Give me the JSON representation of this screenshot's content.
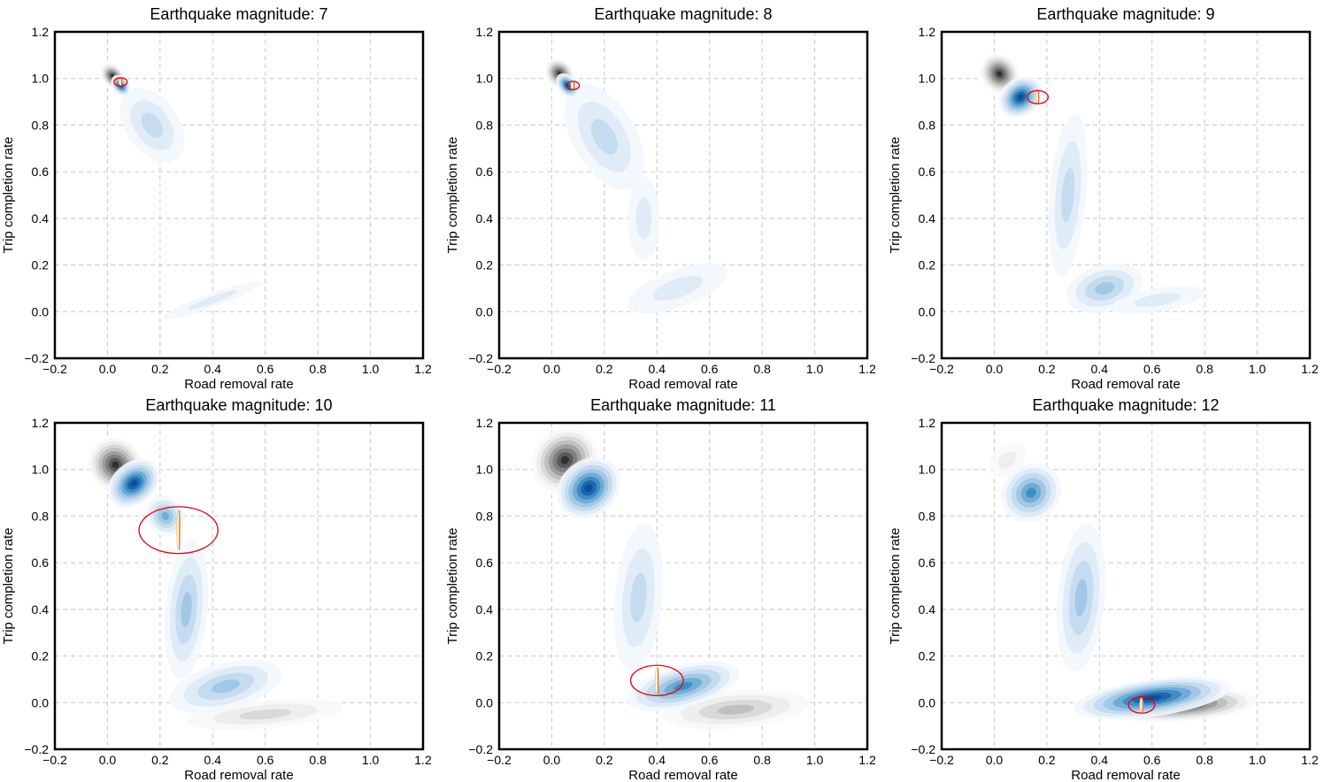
{
  "chart_data": [
    {
      "type": "contour",
      "title": "Earthquake magnitude: 7",
      "xlabel": "Road removal rate",
      "ylabel": "Trip completion rate",
      "xlim": [
        -0.2,
        1.2
      ],
      "ylim": [
        -0.2,
        1.2
      ],
      "xticks": [
        -0.2,
        0.0,
        0.2,
        0.4,
        0.6,
        0.8,
        1.0,
        1.2
      ],
      "xtick_labels": [
        "−0.2",
        "0.0",
        "0.2",
        "0.4",
        "0.6",
        "0.8",
        "1.0",
        "1.2"
      ],
      "yticks": [
        -0.2,
        0.0,
        0.2,
        0.4,
        0.6,
        0.8,
        1.0,
        1.2
      ],
      "ytick_labels": [
        "−0.2",
        "0.0",
        "0.2",
        "0.4",
        "0.6",
        "0.8",
        "1.0",
        "1.2"
      ],
      "grid": true,
      "density": {
        "gray": [
          [
            0.02,
            1.01,
            0.04,
            0.06,
            -40,
            1.0
          ]
        ],
        "blue": [
          [
            0.17,
            0.8,
            0.1,
            0.18,
            -35,
            0.35
          ],
          [
            0.05,
            0.97,
            0.03,
            0.05,
            -38,
            1.0
          ],
          [
            0.4,
            0.05,
            0.2,
            0.03,
            -20,
            0.15
          ]
        ]
      },
      "highlight": {
        "x": 0.05,
        "y": 0.985,
        "rx": 0.025,
        "ry": 0.018
      }
    },
    {
      "type": "contour",
      "title": "Earthquake magnitude: 8",
      "xlabel": "Road removal rate",
      "ylabel": "Trip completion rate",
      "xlim": [
        -0.2,
        1.2
      ],
      "ylim": [
        -0.2,
        1.2
      ],
      "xticks": [
        -0.2,
        0.0,
        0.2,
        0.4,
        0.6,
        0.8,
        1.0,
        1.2
      ],
      "xtick_labels": [
        "−0.2",
        "0.0",
        "0.2",
        "0.4",
        "0.6",
        "0.8",
        "1.0",
        "1.2"
      ],
      "yticks": [
        -0.2,
        0.0,
        0.2,
        0.4,
        0.6,
        0.8,
        1.0,
        1.2
      ],
      "ytick_labels": [
        "−0.2",
        "0.0",
        "0.2",
        "0.4",
        "0.6",
        "0.8",
        "1.0",
        "1.2"
      ],
      "grid": true,
      "density": {
        "gray": [
          [
            0.03,
            1.02,
            0.05,
            0.07,
            -40,
            1.0
          ]
        ],
        "blue": [
          [
            0.2,
            0.75,
            0.12,
            0.25,
            -30,
            0.35
          ],
          [
            0.06,
            0.97,
            0.035,
            0.06,
            -40,
            1.0
          ],
          [
            0.35,
            0.4,
            0.06,
            0.18,
            0,
            0.25
          ],
          [
            0.48,
            0.1,
            0.2,
            0.08,
            -20,
            0.25
          ]
        ]
      },
      "highlight": {
        "x": 0.08,
        "y": 0.97,
        "rx": 0.025,
        "ry": 0.018
      }
    },
    {
      "type": "contour",
      "title": "Earthquake magnitude: 9",
      "xlabel": "Road removal rate",
      "ylabel": "Trip completion rate",
      "xlim": [
        -0.2,
        1.2
      ],
      "ylim": [
        -0.2,
        1.2
      ],
      "xticks": [
        -0.2,
        0.0,
        0.2,
        0.4,
        0.6,
        0.8,
        1.0,
        1.2
      ],
      "xtick_labels": [
        "−0.2",
        "0.0",
        "0.2",
        "0.4",
        "0.6",
        "0.8",
        "1.0",
        "1.2"
      ],
      "yticks": [
        -0.2,
        0.0,
        0.2,
        0.4,
        0.6,
        0.8,
        1.0,
        1.2
      ],
      "ytick_labels": [
        "−0.2",
        "0.0",
        "0.2",
        "0.4",
        "0.6",
        "0.8",
        "1.0",
        "1.2"
      ],
      "grid": true,
      "density": {
        "gray": [
          [
            0.02,
            1.02,
            0.07,
            0.09,
            -40,
            1.0
          ]
        ],
        "blue": [
          [
            0.1,
            0.92,
            0.09,
            0.08,
            -40,
            1.0
          ],
          [
            0.28,
            0.5,
            0.07,
            0.35,
            5,
            0.4
          ],
          [
            0.42,
            0.1,
            0.15,
            0.1,
            -15,
            0.5
          ],
          [
            0.62,
            0.05,
            0.18,
            0.05,
            -10,
            0.3
          ]
        ]
      },
      "highlight": {
        "x": 0.165,
        "y": 0.92,
        "rx": 0.04,
        "ry": 0.028
      }
    },
    {
      "type": "contour",
      "title": "Earthquake magnitude: 10",
      "xlabel": "Road removal rate",
      "ylabel": "Trip completion rate",
      "xlim": [
        -0.2,
        1.2
      ],
      "ylim": [
        -0.2,
        1.2
      ],
      "xticks": [
        -0.2,
        0.0,
        0.2,
        0.4,
        0.6,
        0.8,
        1.0,
        1.2
      ],
      "xtick_labels": [
        "−0.2",
        "0.0",
        "0.2",
        "0.4",
        "0.6",
        "0.8",
        "1.0",
        "1.2"
      ],
      "yticks": [
        -0.2,
        0.0,
        0.2,
        0.4,
        0.6,
        0.8,
        1.0,
        1.2
      ],
      "ytick_labels": [
        "−0.2",
        "0.0",
        "0.2",
        "0.4",
        "0.6",
        "0.8",
        "1.0",
        "1.2"
      ],
      "grid": true,
      "density": {
        "gray": [
          [
            0.03,
            1.02,
            0.1,
            0.12,
            -40,
            1.0
          ],
          [
            0.6,
            -0.05,
            0.3,
            0.06,
            -5,
            0.4
          ]
        ],
        "blue": [
          [
            0.1,
            0.94,
            0.11,
            0.09,
            -40,
            1.0
          ],
          [
            0.22,
            0.8,
            0.07,
            0.09,
            -40,
            0.6
          ],
          [
            0.3,
            0.4,
            0.08,
            0.3,
            5,
            0.45
          ],
          [
            0.45,
            0.07,
            0.22,
            0.1,
            -15,
            0.55
          ]
        ]
      },
      "highlight": {
        "x": 0.27,
        "y": 0.74,
        "rx": 0.15,
        "ry": 0.1
      }
    },
    {
      "type": "contour",
      "title": "Earthquake magnitude: 11",
      "xlabel": "Road removal rate",
      "ylabel": "Trip completion rate",
      "xlim": [
        -0.2,
        1.2
      ],
      "ylim": [
        -0.2,
        1.2
      ],
      "xticks": [
        -0.2,
        0.0,
        0.2,
        0.4,
        0.6,
        0.8,
        1.0,
        1.2
      ],
      "xtick_labels": [
        "−0.2",
        "0.0",
        "0.2",
        "0.4",
        "0.6",
        "0.8",
        "1.0",
        "1.2"
      ],
      "yticks": [
        -0.2,
        0.0,
        0.2,
        0.4,
        0.6,
        0.8,
        1.0,
        1.2
      ],
      "ytick_labels": [
        "−0.2",
        "0.0",
        "0.2",
        "0.4",
        "0.6",
        "0.8",
        "1.0",
        "1.2"
      ],
      "grid": true,
      "density": {
        "gray": [
          [
            0.05,
            1.04,
            0.13,
            0.13,
            -40,
            1.0
          ],
          [
            0.7,
            -0.03,
            0.28,
            0.08,
            -5,
            0.45
          ]
        ],
        "blue": [
          [
            0.14,
            0.92,
            0.13,
            0.12,
            -40,
            1.0
          ],
          [
            0.33,
            0.45,
            0.09,
            0.32,
            5,
            0.4
          ],
          [
            0.5,
            0.07,
            0.22,
            0.09,
            -15,
            0.75
          ]
        ]
      },
      "highlight": {
        "x": 0.4,
        "y": 0.095,
        "rx": 0.1,
        "ry": 0.065
      }
    },
    {
      "type": "contour",
      "title": "Earthquake magnitude: 12",
      "xlabel": "Road removal rate",
      "ylabel": "Trip completion rate",
      "xlim": [
        -0.2,
        1.2
      ],
      "ylim": [
        -0.2,
        1.2
      ],
      "xticks": [
        -0.2,
        0.0,
        0.2,
        0.4,
        0.6,
        0.8,
        1.0,
        1.2
      ],
      "xtick_labels": [
        "−0.2",
        "0.0",
        "0.2",
        "0.4",
        "0.6",
        "0.8",
        "1.0",
        "1.2"
      ],
      "yticks": [
        -0.2,
        0.0,
        0.2,
        0.4,
        0.6,
        0.8,
        1.0,
        1.2
      ],
      "ytick_labels": [
        "−0.2",
        "0.0",
        "0.2",
        "0.4",
        "0.6",
        "0.8",
        "1.0",
        "1.2"
      ],
      "grid": true,
      "density": {
        "gray": [
          [
            0.7,
            -0.01,
            0.3,
            0.07,
            -3,
            1.0
          ],
          [
            0.05,
            1.04,
            0.08,
            0.06,
            -40,
            0.2
          ]
        ],
        "blue": [
          [
            0.14,
            0.9,
            0.12,
            0.12,
            -40,
            0.75
          ],
          [
            0.33,
            0.45,
            0.09,
            0.32,
            5,
            0.45
          ],
          [
            0.6,
            0.02,
            0.3,
            0.08,
            -8,
            1.0
          ]
        ]
      },
      "highlight": {
        "x": 0.56,
        "y": -0.01,
        "rx": 0.05,
        "ry": 0.035
      }
    }
  ],
  "colors": {
    "blue": [
      "#f2f7fd",
      "#dde9f6",
      "#c2d9ed",
      "#9cc5e2",
      "#6aa9d4",
      "#3b88c3",
      "#1764ad",
      "#0b4a92"
    ],
    "gray": [
      "#f8f8f8",
      "#ececec",
      "#d6d6d6",
      "#bdbdbd",
      "#9b9b9b",
      "#7b7b7b",
      "#555555",
      "#2a2a2a"
    ],
    "highlight": "#e8000b",
    "inner_mark": [
      "#fff4cc",
      "#f7c873",
      "#c0392b"
    ],
    "grid": "#c8c8c8"
  }
}
